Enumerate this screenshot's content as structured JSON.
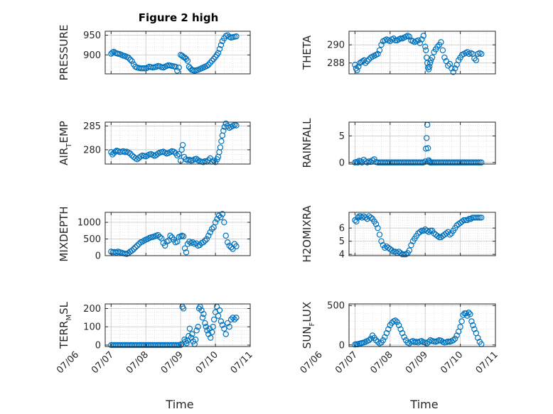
{
  "figure": {
    "title": "Figure 2 high",
    "marker_color": "#0072BD",
    "grid": true,
    "minor_grid": true
  },
  "chart_data": [
    {
      "type": "scatter",
      "ylabel": "PRESSURE",
      "ylabel_sub": "",
      "ylim": [
        852,
        960
      ],
      "yticks": [
        900,
        950
      ],
      "xlim": [
        6.83,
        11.0
      ],
      "xtick_labels": [],
      "x": [
        7.0,
        7.04,
        7.08,
        7.12,
        7.16,
        7.2,
        7.25,
        7.3,
        7.35,
        7.4,
        7.45,
        7.5,
        7.55,
        7.6,
        7.65,
        7.7,
        7.75,
        7.8,
        7.85,
        7.9,
        7.95,
        8.0,
        8.05,
        8.1,
        8.15,
        8.2,
        8.25,
        8.3,
        8.35,
        8.4,
        8.45,
        8.5,
        8.55,
        8.6,
        8.65,
        8.7,
        8.75,
        8.8,
        8.85,
        8.9,
        8.95,
        9.0,
        9.04,
        9.08,
        9.12,
        9.16,
        9.2,
        9.24,
        9.28,
        9.32,
        9.36,
        9.4,
        9.45,
        9.5,
        9.55,
        9.6,
        9.65,
        9.7,
        9.75,
        9.8,
        9.85,
        9.9,
        9.95,
        10.0,
        10.04,
        10.08,
        10.12,
        10.16,
        10.2,
        10.25,
        10.3,
        10.35,
        10.4,
        10.45,
        10.5,
        10.55,
        10.6
      ],
      "values": [
        903,
        906,
        908,
        905,
        904,
        903,
        902,
        900,
        898,
        897,
        895,
        893,
        888,
        884,
        876,
        870,
        868,
        867,
        866,
        866,
        866,
        866,
        868,
        870,
        869,
        868,
        869,
        870,
        872,
        871,
        869,
        868,
        870,
        872,
        874,
        873,
        872,
        871,
        870,
        860,
        868,
        900,
        898,
        895,
        893,
        890,
        885,
        870,
        866,
        862,
        861,
        860,
        861,
        862,
        864,
        866,
        868,
        870,
        872,
        875,
        880,
        885,
        890,
        895,
        900,
        905,
        915,
        925,
        935,
        942,
        948,
        950,
        946,
        944,
        945,
        946,
        947
      ]
    },
    {
      "type": "scatter",
      "ylabel": "THETA",
      "ylabel_sub": "",
      "ylim": [
        286.8,
        291.5
      ],
      "yticks": [
        288,
        290
      ],
      "xlim": [
        6.83,
        11.0
      ],
      "xtick_labels": [],
      "x": [
        7.0,
        7.03,
        7.06,
        7.1,
        7.14,
        7.18,
        7.22,
        7.26,
        7.3,
        7.35,
        7.4,
        7.45,
        7.5,
        7.55,
        7.6,
        7.65,
        7.7,
        7.75,
        7.8,
        7.85,
        7.9,
        7.95,
        8.0,
        8.05,
        8.1,
        8.15,
        8.2,
        8.25,
        8.3,
        8.35,
        8.4,
        8.45,
        8.5,
        8.55,
        8.6,
        8.65,
        8.7,
        8.75,
        8.8,
        8.85,
        8.9,
        8.95,
        9.0,
        9.02,
        9.04,
        9.06,
        9.08,
        9.1,
        9.12,
        9.14,
        9.16,
        9.2,
        9.25,
        9.3,
        9.35,
        9.4,
        9.45,
        9.5,
        9.55,
        9.6,
        9.65,
        9.7,
        9.75,
        9.8,
        9.85,
        9.9,
        9.95,
        10.0,
        10.05,
        10.1,
        10.15,
        10.2,
        10.25,
        10.3,
        10.35,
        10.4,
        10.45,
        10.5,
        10.55,
        10.6
      ],
      "values": [
        287.8,
        287.4,
        287.2,
        287.6,
        288.0,
        288.1,
        288.2,
        288.3,
        288.0,
        288.2,
        288.4,
        288.6,
        288.7,
        288.8,
        288.9,
        289.0,
        289.4,
        290.0,
        290.4,
        290.5,
        290.6,
        290.5,
        290.4,
        290.6,
        290.7,
        290.5,
        290.5,
        290.6,
        290.7,
        290.7,
        290.8,
        290.9,
        291.0,
        290.9,
        290.5,
        290.4,
        290.3,
        290.4,
        290.5,
        290.2,
        290.6,
        291.0,
        289.8,
        289.4,
        288.6,
        288.0,
        287.5,
        287.3,
        287.6,
        288.0,
        288.3,
        288.6,
        289.2,
        289.5,
        289.8,
        290.0,
        290.3,
        289.4,
        288.6,
        288.2,
        287.7,
        287.9,
        287.4,
        287.0,
        287.4,
        287.8,
        288.3,
        288.6,
        288.9,
        289.0,
        289.1,
        289.2,
        289.0,
        289.1,
        289.0,
        288.5,
        288.3,
        289.0,
        289.1,
        289.0
      ]
    },
    {
      "type": "scatter",
      "ylabel": "AIR",
      "ylabel_sub": "T",
      "ylabel_suffix": "EMP",
      "ylim": [
        277.0,
        285.8
      ],
      "yticks": [
        280,
        285
      ],
      "xlim": [
        6.83,
        11.0
      ],
      "xtick_labels": [],
      "x": [
        7.0,
        7.04,
        7.08,
        7.12,
        7.16,
        7.2,
        7.25,
        7.3,
        7.35,
        7.4,
        7.45,
        7.5,
        7.55,
        7.6,
        7.65,
        7.7,
        7.75,
        7.8,
        7.85,
        7.9,
        7.95,
        8.0,
        8.05,
        8.1,
        8.15,
        8.2,
        8.25,
        8.3,
        8.35,
        8.4,
        8.45,
        8.5,
        8.55,
        8.6,
        8.65,
        8.7,
        8.75,
        8.8,
        8.85,
        8.9,
        8.95,
        9.0,
        9.03,
        9.06,
        9.1,
        9.15,
        9.2,
        9.25,
        9.3,
        9.35,
        9.4,
        9.45,
        9.5,
        9.55,
        9.6,
        9.65,
        9.7,
        9.75,
        9.8,
        9.85,
        9.9,
        9.95,
        10.0,
        10.05,
        10.08,
        10.11,
        10.14,
        10.17,
        10.2,
        10.23,
        10.26,
        10.3,
        10.35,
        10.4,
        10.45,
        10.5,
        10.55,
        10.6
      ],
      "values": [
        279.5,
        279.0,
        279.3,
        279.6,
        279.8,
        279.7,
        279.5,
        279.6,
        279.7,
        279.5,
        279.6,
        279.4,
        279.2,
        278.8,
        278.5,
        278.2,
        278.0,
        278.3,
        278.6,
        278.8,
        278.7,
        278.6,
        278.8,
        279.0,
        279.1,
        278.9,
        278.7,
        278.9,
        279.2,
        279.4,
        279.5,
        279.6,
        279.4,
        279.2,
        279.3,
        279.5,
        279.7,
        279.6,
        279.3,
        278.8,
        279.1,
        277.7,
        280.0,
        281.0,
        278.5,
        278.0,
        277.8,
        277.9,
        277.7,
        277.8,
        278.0,
        278.1,
        277.8,
        277.6,
        277.5,
        277.4,
        277.6,
        277.5,
        277.8,
        278.2,
        277.5,
        277.7,
        277.4,
        278.0,
        278.5,
        279.5,
        280.5,
        281.8,
        283.0,
        284.0,
        284.8,
        285.5,
        285.0,
        284.6,
        284.8,
        285.0,
        285.2,
        285.1
      ]
    },
    {
      "type": "scatter",
      "ylabel": "RAINFALL",
      "ylabel_sub": "",
      "ylim": [
        -0.3,
        7.6
      ],
      "yticks": [
        0,
        5
      ],
      "xlim": [
        6.83,
        11.0
      ],
      "xtick_labels": [],
      "x": [
        7.0,
        7.04,
        7.08,
        7.12,
        7.16,
        7.2,
        7.25,
        7.3,
        7.35,
        7.4,
        7.45,
        7.5,
        7.55,
        7.6,
        7.65,
        7.7,
        7.75,
        7.8,
        7.85,
        7.9,
        7.95,
        8.0,
        8.05,
        8.1,
        8.15,
        8.2,
        8.25,
        8.3,
        8.35,
        8.4,
        8.45,
        8.5,
        8.55,
        8.6,
        8.65,
        8.7,
        8.75,
        8.8,
        8.85,
        8.9,
        8.95,
        9.0,
        9.02,
        9.04,
        9.06,
        9.08,
        9.1,
        9.12,
        9.14,
        9.16,
        9.2,
        9.25,
        9.3,
        9.35,
        9.4,
        9.45,
        9.5,
        9.55,
        9.6,
        9.65,
        9.7,
        9.75,
        9.8,
        9.85,
        9.9,
        9.95,
        10.0,
        10.05,
        10.1,
        10.15,
        10.2,
        10.25,
        10.3,
        10.35,
        10.4,
        10.45,
        10.5,
        10.55,
        10.6
      ],
      "values": [
        0.0,
        0.1,
        0.0,
        0.3,
        0.2,
        0.0,
        0.5,
        0.2,
        0.0,
        0.2,
        0.1,
        0.4,
        0.6,
        0.1,
        0.0,
        0.0,
        0.0,
        0.0,
        0.0,
        0.0,
        0.0,
        0.0,
        0.0,
        0.0,
        0.0,
        0.0,
        0.0,
        0.0,
        0.0,
        0.0,
        0.0,
        0.0,
        0.0,
        0.0,
        0.0,
        0.0,
        0.0,
        0.0,
        0.0,
        0.0,
        0.0,
        0.2,
        2.6,
        4.6,
        7.1,
        2.7,
        0.4,
        0.2,
        0.0,
        0.0,
        0.0,
        0.0,
        0.0,
        0.0,
        0.0,
        0.0,
        0.0,
        0.0,
        0.0,
        0.0,
        0.0,
        0.0,
        0.0,
        0.0,
        0.0,
        0.0,
        0.0,
        0.0,
        0.0,
        0.0,
        0.0,
        0.0,
        0.0,
        0.0,
        0.0,
        0.0,
        0.0,
        0.0,
        0.0
      ]
    },
    {
      "type": "scatter",
      "ylabel": "MIXDEPTH",
      "ylabel_sub": "",
      "ylim": [
        0,
        1300
      ],
      "yticks": [
        0,
        500,
        1000
      ],
      "xlim": [
        6.83,
        11.0
      ],
      "xtick_labels": [],
      "x": [
        7.0,
        7.05,
        7.1,
        7.15,
        7.2,
        7.25,
        7.3,
        7.35,
        7.4,
        7.45,
        7.5,
        7.55,
        7.6,
        7.65,
        7.7,
        7.75,
        7.8,
        7.85,
        7.9,
        7.95,
        8.0,
        8.05,
        8.1,
        8.15,
        8.2,
        8.25,
        8.3,
        8.35,
        8.4,
        8.45,
        8.5,
        8.55,
        8.6,
        8.65,
        8.7,
        8.75,
        8.8,
        8.85,
        8.9,
        8.95,
        9.0,
        9.04,
        9.08,
        9.12,
        9.16,
        9.2,
        9.25,
        9.3,
        9.35,
        9.4,
        9.45,
        9.5,
        9.55,
        9.6,
        9.65,
        9.7,
        9.75,
        9.8,
        9.85,
        9.9,
        9.95,
        10.0,
        10.05,
        10.1,
        10.15,
        10.2,
        10.25,
        10.3,
        10.35,
        10.4,
        10.45,
        10.5,
        10.55,
        10.6
      ],
      "values": [
        120,
        100,
        110,
        90,
        120,
        100,
        90,
        70,
        60,
        50,
        80,
        120,
        150,
        200,
        250,
        300,
        350,
        400,
        420,
        450,
        480,
        500,
        530,
        550,
        560,
        580,
        600,
        620,
        560,
        520,
        380,
        300,
        420,
        450,
        600,
        550,
        480,
        400,
        420,
        560,
        580,
        600,
        580,
        220,
        100,
        350,
        420,
        380,
        400,
        350,
        370,
        300,
        320,
        380,
        400,
        450,
        500,
        600,
        700,
        800,
        850,
        1000,
        1100,
        1200,
        1150,
        1250,
        1000,
        600,
        400,
        300,
        250,
        200,
        350,
        280
      ]
    },
    {
      "type": "scatter",
      "ylabel": "H2OMIXRA",
      "ylabel_sub": "",
      "ylim": [
        3.9,
        7.2
      ],
      "yticks": [
        4,
        5,
        6
      ],
      "xlim": [
        6.83,
        11.0
      ],
      "xtick_labels": [],
      "x": [
        7.0,
        7.04,
        7.08,
        7.12,
        7.16,
        7.2,
        7.25,
        7.3,
        7.35,
        7.4,
        7.45,
        7.5,
        7.55,
        7.6,
        7.65,
        7.7,
        7.75,
        7.8,
        7.85,
        7.9,
        7.95,
        8.0,
        8.05,
        8.1,
        8.15,
        8.2,
        8.25,
        8.3,
        8.35,
        8.4,
        8.45,
        8.5,
        8.55,
        8.6,
        8.65,
        8.7,
        8.75,
        8.8,
        8.85,
        8.9,
        8.95,
        9.0,
        9.05,
        9.1,
        9.15,
        9.2,
        9.25,
        9.3,
        9.35,
        9.4,
        9.45,
        9.5,
        9.55,
        9.6,
        9.65,
        9.7,
        9.75,
        9.8,
        9.85,
        9.9,
        9.95,
        10.0,
        10.05,
        10.1,
        10.15,
        10.2,
        10.25,
        10.3,
        10.35,
        10.4,
        10.45,
        10.5,
        10.55,
        10.6
      ],
      "values": [
        6.6,
        6.5,
        6.8,
        6.9,
        6.9,
        6.8,
        6.9,
        6.8,
        6.7,
        6.9,
        6.8,
        6.7,
        6.5,
        6.3,
        6.0,
        5.5,
        5.0,
        4.7,
        4.5,
        4.6,
        4.5,
        4.4,
        4.3,
        4.2,
        4.2,
        4.1,
        4.2,
        4.1,
        4.0,
        4.0,
        4.0,
        4.1,
        4.3,
        4.7,
        5.0,
        5.2,
        5.4,
        5.6,
        5.7,
        5.8,
        5.8,
        5.9,
        5.8,
        5.7,
        5.8,
        5.8,
        5.6,
        5.5,
        5.4,
        5.3,
        5.3,
        5.4,
        5.5,
        5.6,
        5.7,
        5.5,
        5.6,
        5.8,
        6.0,
        6.2,
        6.3,
        6.4,
        6.5,
        6.6,
        6.6,
        6.6,
        6.7,
        6.7,
        6.8,
        6.8,
        6.8,
        6.8,
        6.8,
        6.8
      ]
    },
    {
      "type": "scatter",
      "ylabel": "TERR",
      "ylabel_sub": "M",
      "ylabel_suffix": "SL",
      "ylim": [
        -8,
        225
      ],
      "yticks": [
        0,
        100,
        200
      ],
      "xlim": [
        6.83,
        11.0
      ],
      "xtick_labels": [
        "07/06",
        "07/07",
        "07/08",
        "07/09",
        "07/10",
        "07/11"
      ],
      "xlabel": "Time",
      "x": [
        7.0,
        7.05,
        7.1,
        7.15,
        7.2,
        7.25,
        7.3,
        7.35,
        7.4,
        7.45,
        7.5,
        7.55,
        7.6,
        7.65,
        7.7,
        7.75,
        7.8,
        7.85,
        7.9,
        7.95,
        8.0,
        8.05,
        8.1,
        8.15,
        8.2,
        8.25,
        8.3,
        8.35,
        8.4,
        8.45,
        8.5,
        8.55,
        8.6,
        8.65,
        8.7,
        8.75,
        8.8,
        8.85,
        8.9,
        8.95,
        9.0,
        9.02,
        9.05,
        9.08,
        9.11,
        9.14,
        9.17,
        9.2,
        9.23,
        9.26,
        9.3,
        9.33,
        9.36,
        9.4,
        9.43,
        9.46,
        9.5,
        9.53,
        9.56,
        9.6,
        9.63,
        9.66,
        9.7,
        9.73,
        9.76,
        9.8,
        9.83,
        9.86,
        9.9,
        9.93,
        9.96,
        10.0,
        10.04,
        10.08,
        10.12,
        10.16,
        10.2,
        10.25,
        10.3,
        10.35,
        10.4,
        10.45,
        10.5,
        10.55,
        10.6
      ],
      "values": [
        0,
        0,
        0,
        0,
        0,
        0,
        0,
        0,
        0,
        0,
        0,
        0,
        0,
        0,
        0,
        0,
        0,
        0,
        0,
        0,
        0,
        0,
        0,
        0,
        0,
        0,
        0,
        0,
        0,
        0,
        0,
        0,
        0,
        0,
        0,
        0,
        0,
        0,
        0,
        0,
        0,
        5,
        210,
        200,
        30,
        20,
        10,
        25,
        50,
        90,
        40,
        60,
        20,
        5,
        30,
        80,
        100,
        200,
        210,
        190,
        150,
        170,
        120,
        100,
        80,
        60,
        90,
        40,
        70,
        100,
        140,
        180,
        210,
        160,
        190,
        130,
        110,
        90,
        60,
        120,
        100,
        140,
        150,
        140,
        150
      ]
    },
    {
      "type": "scatter",
      "ylabel": "SUN",
      "ylabel_sub": "F",
      "ylabel_suffix": "LUX",
      "ylim": [
        -20,
        520
      ],
      "yticks": [
        0,
        500
      ],
      "xlim": [
        6.83,
        11.0
      ],
      "xtick_labels": [
        "07/06",
        "07/07",
        "07/08",
        "07/09",
        "07/10",
        "07/11"
      ],
      "xlabel": "Time",
      "x": [
        7.0,
        7.04,
        7.08,
        7.12,
        7.16,
        7.2,
        7.25,
        7.3,
        7.35,
        7.4,
        7.45,
        7.5,
        7.55,
        7.6,
        7.65,
        7.7,
        7.75,
        7.8,
        7.85,
        7.9,
        7.95,
        8.0,
        8.05,
        8.1,
        8.15,
        8.2,
        8.25,
        8.3,
        8.35,
        8.4,
        8.45,
        8.5,
        8.55,
        8.6,
        8.65,
        8.7,
        8.75,
        8.8,
        8.85,
        8.9,
        8.95,
        9.0,
        9.05,
        9.1,
        9.15,
        9.2,
        9.25,
        9.3,
        9.35,
        9.4,
        9.45,
        9.5,
        9.55,
        9.6,
        9.65,
        9.7,
        9.75,
        9.8,
        9.85,
        9.9,
        9.95,
        10.0,
        10.04,
        10.08,
        10.12,
        10.16,
        10.2,
        10.24,
        10.28,
        10.32,
        10.36,
        10.4,
        10.45,
        10.5,
        10.55,
        10.6
      ],
      "values": [
        5,
        10,
        8,
        15,
        20,
        25,
        30,
        40,
        50,
        60,
        80,
        120,
        90,
        60,
        40,
        20,
        30,
        60,
        100,
        150,
        200,
        250,
        280,
        300,
        310,
        290,
        250,
        200,
        150,
        100,
        60,
        30,
        20,
        40,
        50,
        35,
        40,
        30,
        45,
        50,
        35,
        30,
        20,
        40,
        60,
        50,
        45,
        40,
        50,
        60,
        55,
        40,
        30,
        35,
        45,
        40,
        50,
        60,
        80,
        120,
        170,
        230,
        300,
        380,
        400,
        400,
        370,
        410,
        390,
        300,
        250,
        200,
        150,
        90,
        40,
        10
      ]
    }
  ]
}
